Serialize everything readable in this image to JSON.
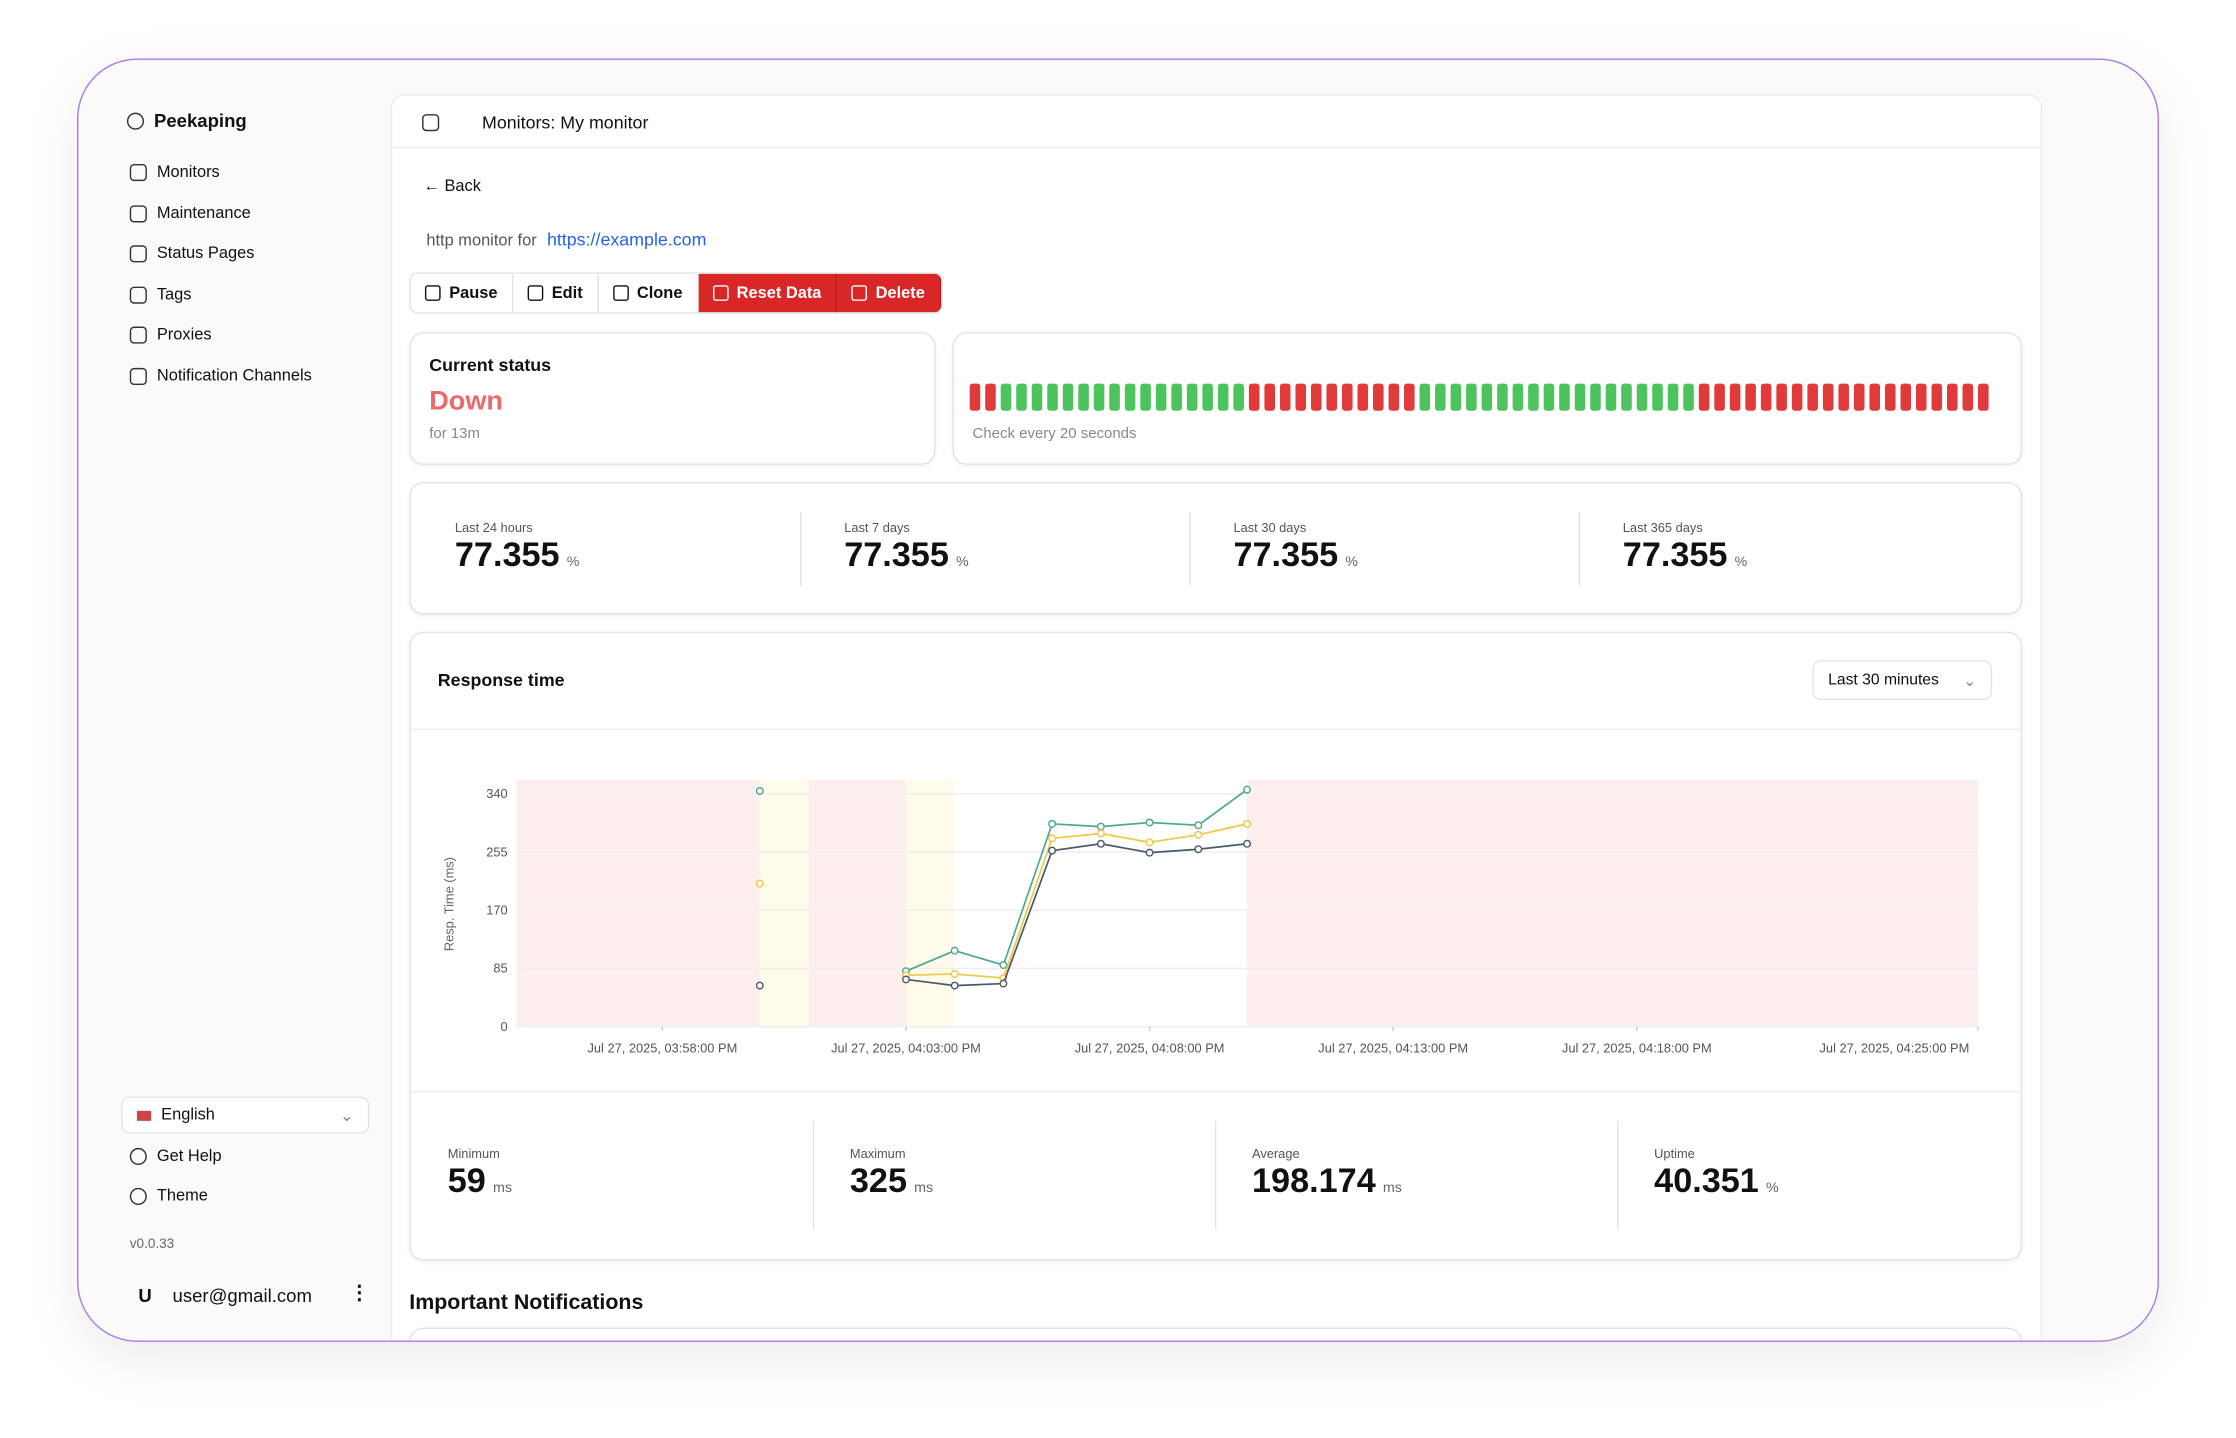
{
  "sidebar": {
    "brand": "Peekaping",
    "nav": [
      "Monitors",
      "Maintenance",
      "Status Pages",
      "Tags",
      "Proxies",
      "Notification Channels"
    ],
    "language": "English",
    "help": "Get Help",
    "theme": "Theme",
    "version": "v0.0.33",
    "user_initial": "U",
    "user": "user@gmail.com"
  },
  "header": {
    "title": "Monitors: My monitor"
  },
  "back": "Back",
  "monitor": {
    "prefix": "http monitor for",
    "url": "https://example.com"
  },
  "actions": [
    "Pause",
    "Edit",
    "Clone",
    "Reset Data",
    "Delete"
  ],
  "status": {
    "label": "Current status",
    "value": "Down",
    "since": "for 13m"
  },
  "heartbeat": {
    "values": [
      0,
      0,
      1,
      1,
      1,
      1,
      1,
      1,
      1,
      1,
      1,
      1,
      1,
      1,
      1,
      1,
      1,
      1,
      0,
      0,
      0,
      0,
      0,
      0,
      0,
      0,
      0,
      0,
      0,
      1,
      1,
      1,
      1,
      1,
      1,
      1,
      1,
      1,
      1,
      1,
      1,
      1,
      1,
      1,
      1,
      1,
      1,
      0,
      0,
      0,
      0,
      0,
      0,
      0,
      0,
      0,
      0,
      0,
      0,
      0,
      0,
      0,
      0,
      0,
      0,
      0
    ],
    "up_color": "#4cc35c",
    "down_color": "#e03a3a",
    "note": "Check every 20 seconds"
  },
  "uptime": [
    {
      "label": "Last 24 hours",
      "value": 77.355,
      "unit": "%"
    },
    {
      "label": "Last 7 days",
      "value": 77.355,
      "unit": "%"
    },
    {
      "label": "Last 30 days",
      "value": 77.355,
      "unit": "%"
    },
    {
      "label": "Last 365 days",
      "value": 77.355,
      "unit": "%"
    }
  ],
  "range": "Last 30 minutes",
  "chart_data": {
    "type": "line",
    "title": "Response time",
    "y_label": "Resp. Time (ms)",
    "x": [
      "2025-07-27T16:00:00",
      "2025-07-27T16:01:00",
      "2025-07-27T16:02:00",
      "2025-07-27T16:03:00",
      "2025-07-27T16:04:00",
      "2025-07-27T16:05:00",
      "2025-07-27T16:06:00",
      "2025-07-27T16:07:00",
      "2025-07-27T16:08:00",
      "2025-07-27T16:09:00",
      "2025-07-27T16:10:00"
    ],
    "series": [
      {
        "color": "#4fa88f",
        "values": [
          344,
          null,
          null,
          81,
          111,
          90,
          296,
          292,
          298,
          294,
          346
        ]
      },
      {
        "color": "#f2c744",
        "values": [
          209,
          null,
          null,
          75,
          77,
          71,
          275,
          282,
          269,
          280,
          296
        ]
      },
      {
        "color": "#4a5a6a",
        "values": [
          60,
          null,
          null,
          69,
          60,
          63,
          257,
          267,
          254,
          259,
          267
        ]
      }
    ],
    "bands": [
      {
        "start": "2025-07-27T15:55:00",
        "end": "2025-07-27T16:00:00",
        "color": "#fdeeee"
      },
      {
        "start": "2025-07-27T16:00:00",
        "end": "2025-07-27T16:01:00",
        "color": "#fefbea"
      },
      {
        "start": "2025-07-27T16:01:00",
        "end": "2025-07-27T16:03:00",
        "color": "#fdeeee"
      },
      {
        "start": "2025-07-27T16:03:00",
        "end": "2025-07-27T16:04:00",
        "color": "#fefbea"
      },
      {
        "start": "2025-07-27T16:10:00",
        "end": "2025-07-27T16:25:00",
        "color": "#fdeeee"
      }
    ],
    "xlim": [
      "2025-07-27T15:55:00",
      "2025-07-27T16:25:00"
    ],
    "xticks": [
      {
        "value": "2025-07-27T15:58:00",
        "label": "Jul 27, 2025, 03:58:00 PM"
      },
      {
        "value": "2025-07-27T16:03:00",
        "label": "Jul 27, 2025, 04:03:00 PM"
      },
      {
        "value": "2025-07-27T16:08:00",
        "label": "Jul 27, 2025, 04:08:00 PM"
      },
      {
        "value": "2025-07-27T16:13:00",
        "label": "Jul 27, 2025, 04:13:00 PM"
      },
      {
        "value": "2025-07-27T16:18:00",
        "label": "Jul 27, 2025, 04:18:00 PM"
      },
      {
        "value": "2025-07-27T16:25:00",
        "label": "Jul 27, 2025, 04:25:00 PM"
      }
    ],
    "ylim": [
      0,
      360
    ],
    "yticks": [
      0,
      85,
      170,
      255,
      340
    ],
    "grid": true
  },
  "stats": [
    {
      "label": "Minimum",
      "value": 59,
      "unit": "ms"
    },
    {
      "label": "Maximum",
      "value": 325,
      "unit": "ms"
    },
    {
      "label": "Average",
      "value": 198.174,
      "unit": "ms"
    },
    {
      "label": "Uptime",
      "value": 40.351,
      "unit": "%"
    }
  ],
  "notifications": {
    "title": "Important Notifications"
  }
}
